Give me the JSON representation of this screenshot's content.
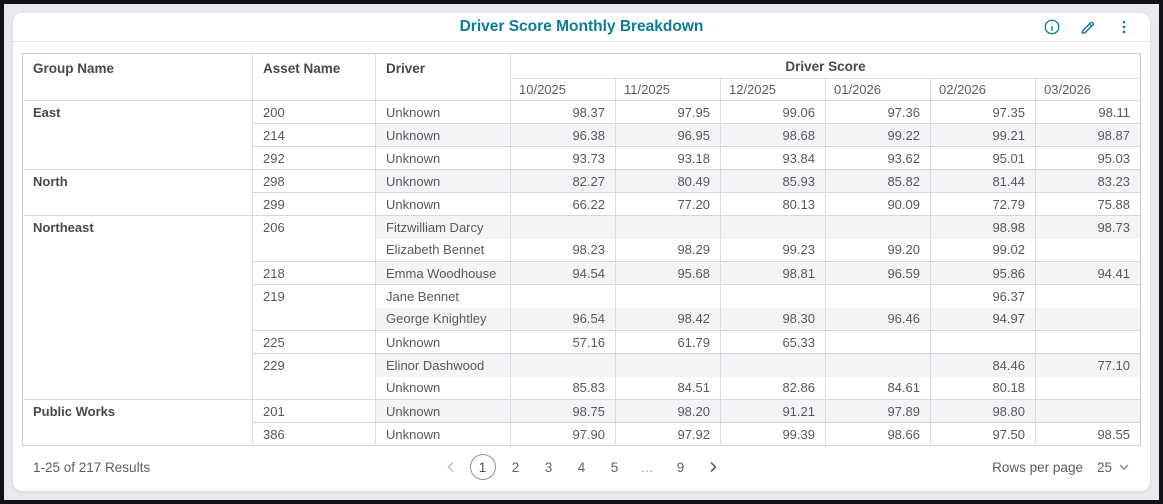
{
  "header": {
    "title": "Driver Score Monthly Breakdown",
    "icons": [
      "info-icon",
      "edit-icon",
      "kebab-menu-icon"
    ]
  },
  "colors": {
    "accent_teal": "#0a7d95",
    "row_stripe": "#f4f4f6",
    "table_border": "#d4d6da",
    "header_text": "#45494f",
    "body_text": "#55595f"
  },
  "table": {
    "columns": {
      "group": "Group Name",
      "asset": "Asset Name",
      "driver": "Driver",
      "score_group": "Driver Score"
    },
    "months": [
      "10/2025",
      "11/2025",
      "12/2025",
      "01/2026",
      "02/2026",
      "03/2026"
    ],
    "groups": [
      {
        "name": "East",
        "assets": [
          {
            "name": "200",
            "drivers": [
              {
                "name": "Unknown",
                "scores": [
                  "98.37",
                  "97.95",
                  "99.06",
                  "97.36",
                  "97.35",
                  "98.11"
                ]
              }
            ]
          },
          {
            "name": "214",
            "drivers": [
              {
                "name": "Unknown",
                "scores": [
                  "96.38",
                  "96.95",
                  "98.68",
                  "99.22",
                  "99.21",
                  "98.87"
                ]
              }
            ]
          },
          {
            "name": "292",
            "drivers": [
              {
                "name": "Unknown",
                "scores": [
                  "93.73",
                  "93.18",
                  "93.84",
                  "93.62",
                  "95.01",
                  "95.03"
                ]
              }
            ]
          }
        ]
      },
      {
        "name": "North",
        "assets": [
          {
            "name": "298",
            "drivers": [
              {
                "name": "Unknown",
                "scores": [
                  "82.27",
                  "80.49",
                  "85.93",
                  "85.82",
                  "81.44",
                  "83.23"
                ]
              }
            ]
          },
          {
            "name": "299",
            "drivers": [
              {
                "name": "Unknown",
                "scores": [
                  "66.22",
                  "77.20",
                  "80.13",
                  "90.09",
                  "72.79",
                  "75.88"
                ]
              }
            ]
          }
        ]
      },
      {
        "name": "Northeast",
        "assets": [
          {
            "name": "206",
            "drivers": [
              {
                "name": "Fitzwilliam Darcy",
                "scores": [
                  "",
                  "",
                  "",
                  "",
                  "98.98",
                  "98.73"
                ]
              },
              {
                "name": "Elizabeth Bennet",
                "scores": [
                  "98.23",
                  "98.29",
                  "99.23",
                  "99.20",
                  "99.02",
                  ""
                ]
              }
            ]
          },
          {
            "name": "218",
            "drivers": [
              {
                "name": "Emma Woodhouse",
                "scores": [
                  "94.54",
                  "95.68",
                  "98.81",
                  "96.59",
                  "95.86",
                  "94.41"
                ]
              }
            ]
          },
          {
            "name": "219",
            "drivers": [
              {
                "name": "Jane Bennet",
                "scores": [
                  "",
                  "",
                  "",
                  "",
                  "96.37",
                  ""
                ]
              },
              {
                "name": "George Knightley",
                "scores": [
                  "96.54",
                  "98.42",
                  "98.30",
                  "96.46",
                  "94.97",
                  ""
                ]
              }
            ]
          },
          {
            "name": "225",
            "drivers": [
              {
                "name": "Unknown",
                "scores": [
                  "57.16",
                  "61.79",
                  "65.33",
                  "",
                  "",
                  ""
                ]
              }
            ]
          },
          {
            "name": "229",
            "drivers": [
              {
                "name": "Elinor Dashwood",
                "scores": [
                  "",
                  "",
                  "",
                  "",
                  "84.46",
                  "77.10"
                ]
              },
              {
                "name": "Unknown",
                "scores": [
                  "85.83",
                  "84.51",
                  "82.86",
                  "84.61",
                  "80.18",
                  ""
                ]
              }
            ]
          }
        ]
      },
      {
        "name": "Public Works",
        "assets": [
          {
            "name": "201",
            "drivers": [
              {
                "name": "Unknown",
                "scores": [
                  "98.75",
                  "98.20",
                  "91.21",
                  "97.89",
                  "98.80",
                  ""
                ]
              }
            ]
          },
          {
            "name": "386",
            "drivers": [
              {
                "name": "Unknown",
                "scores": [
                  "97.90",
                  "97.92",
                  "99.39",
                  "98.66",
                  "97.50",
                  "98.55"
                ]
              }
            ]
          }
        ]
      }
    ]
  },
  "footer": {
    "results": "1-25 of 217 Results",
    "pagination": {
      "current": "1",
      "pages": [
        "1",
        "2",
        "3",
        "4",
        "5",
        "…",
        "9"
      ]
    },
    "rows_per_page_label": "Rows per page",
    "rows_per_page_value": "25"
  }
}
